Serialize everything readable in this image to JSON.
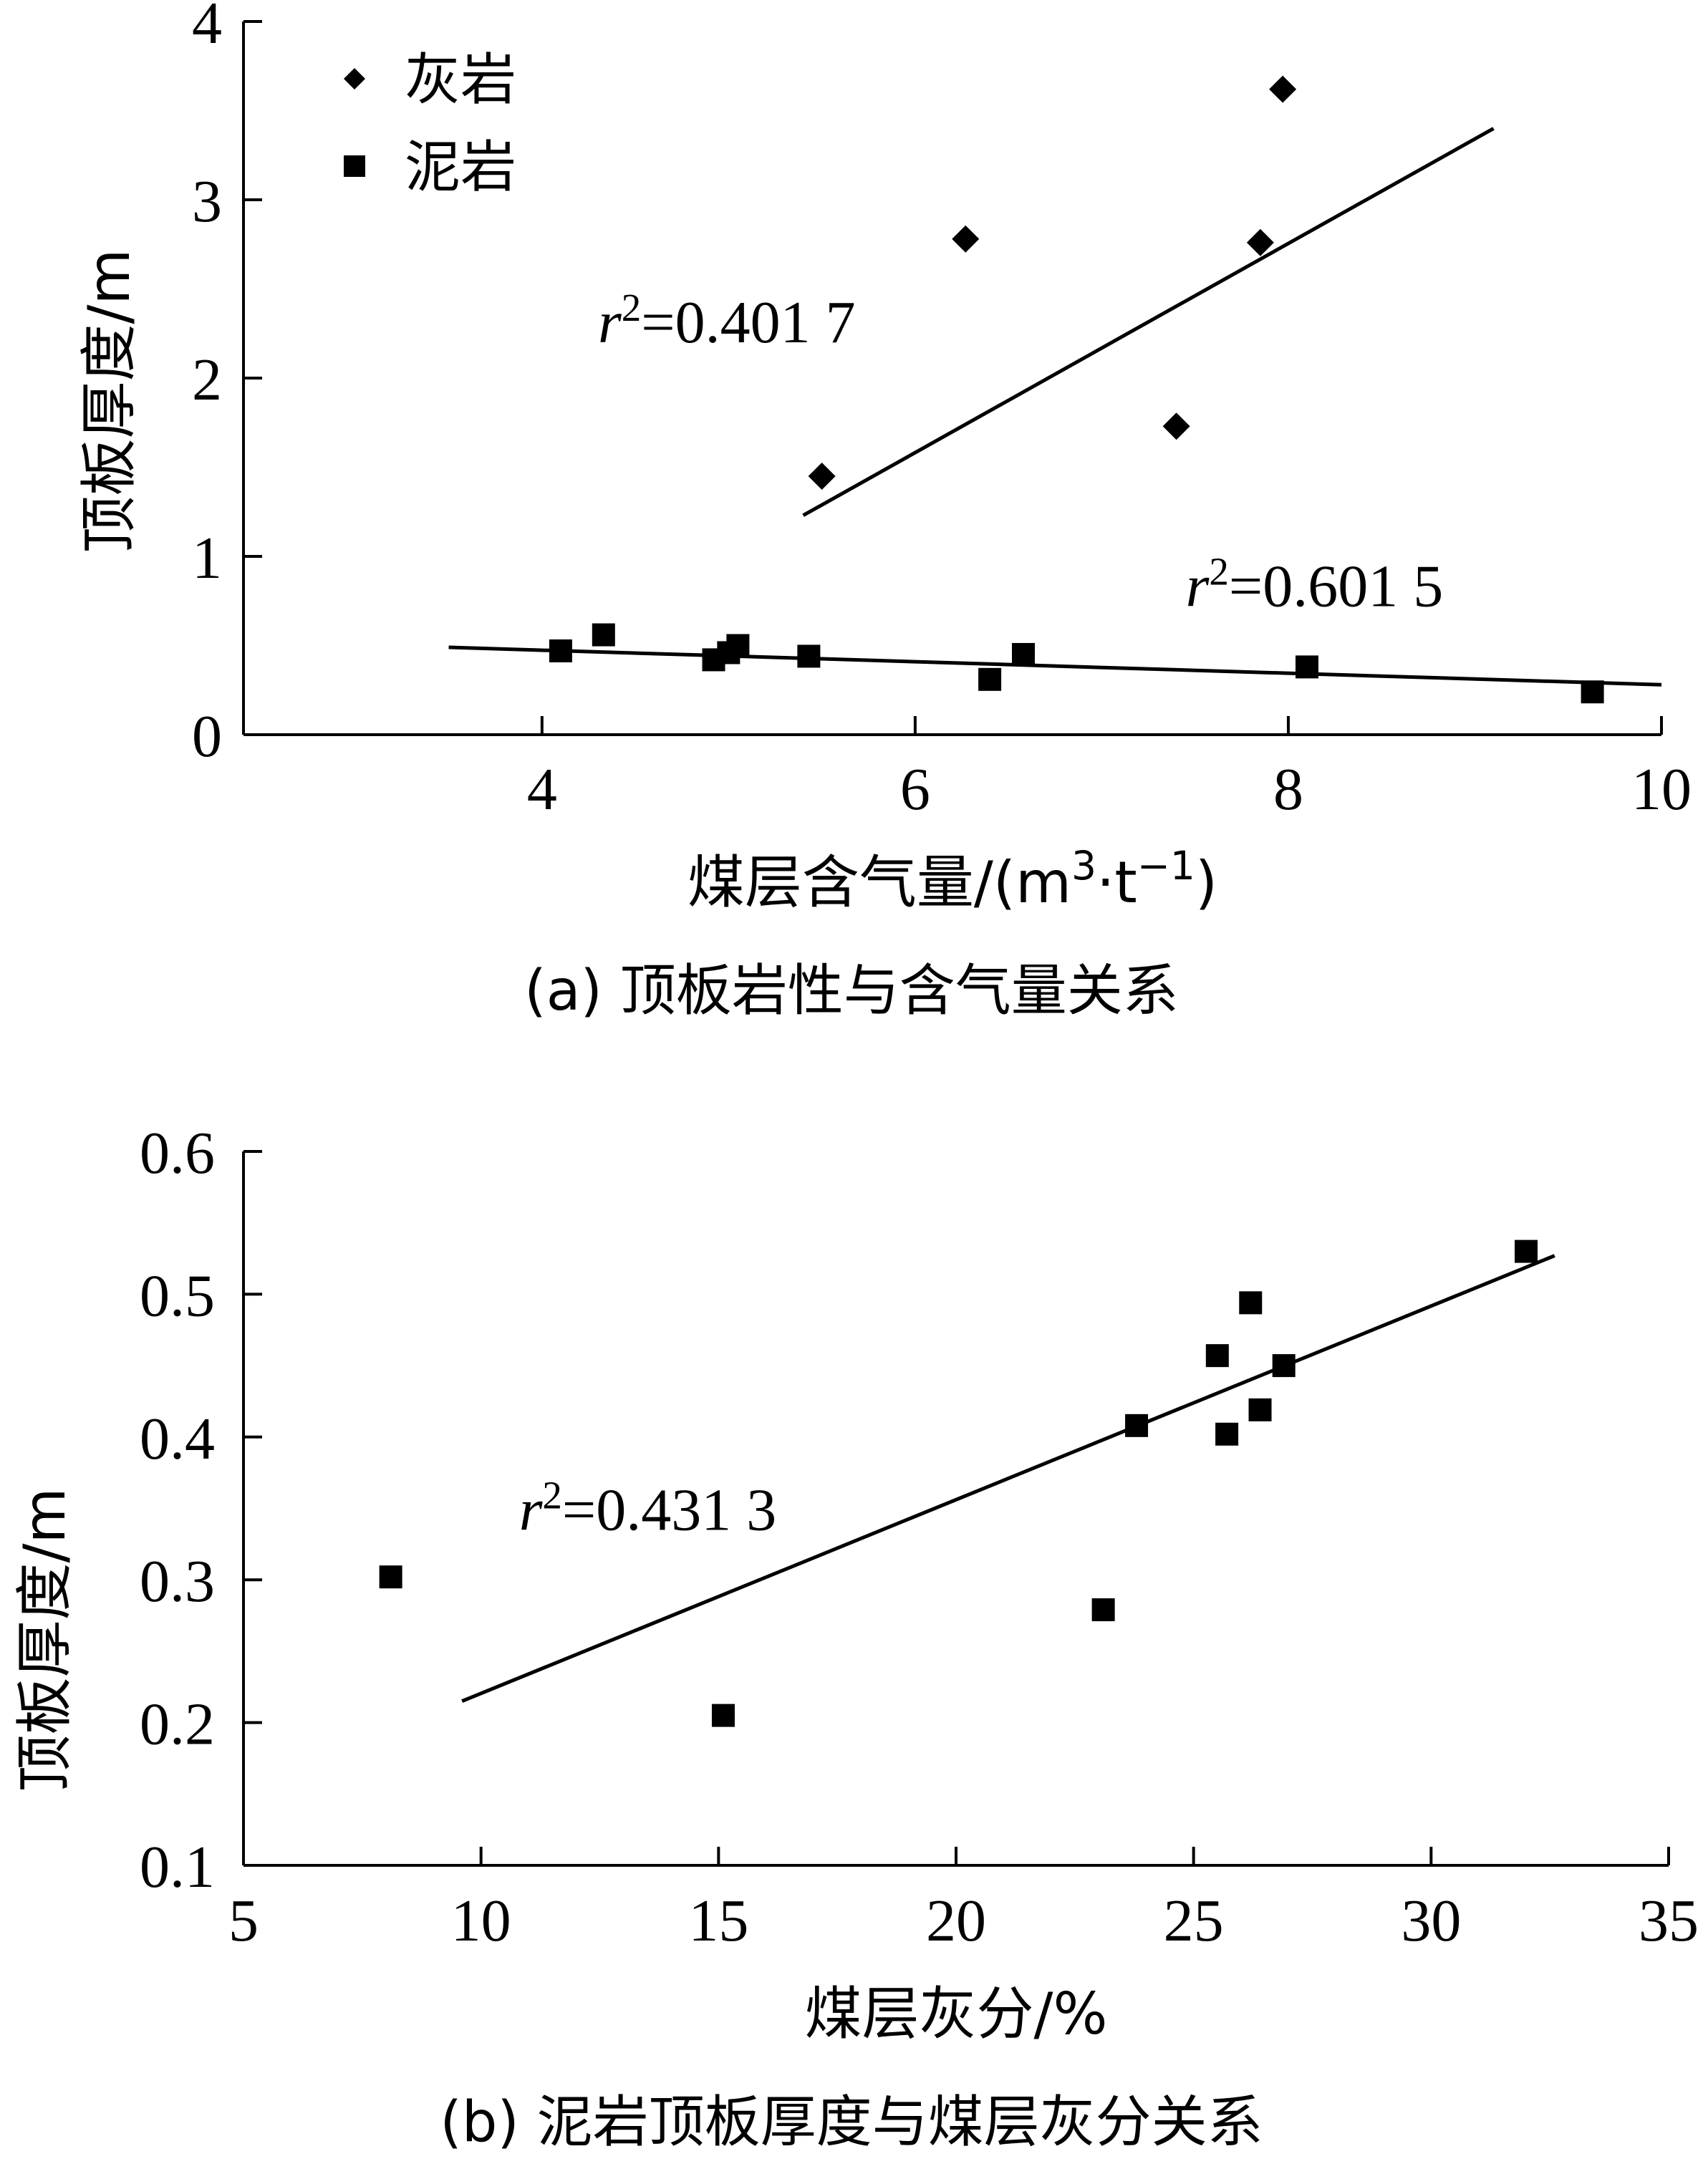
{
  "chart_data": [
    {
      "type": "scatter",
      "caption": "(a)  顶板岩性与含气量关系",
      "xlabel_html": "煤层含气量/(m<tspan baseline-shift=\"super\" font-size=\"55\">3</tspan>·t<tspan baseline-shift=\"super\" font-size=\"55\">−1</tspan>)",
      "ylabel": "顶板厚度/m",
      "xlim": [
        2.4,
        10
      ],
      "ylim": [
        0,
        4
      ],
      "xticks": [
        "4",
        "6",
        "8",
        "10"
      ],
      "xtick_values": [
        4,
        6,
        8,
        10
      ],
      "yticks": [
        "0",
        "1",
        "2",
        "3",
        "4"
      ],
      "ytick_values": [
        0,
        1,
        2,
        3,
        4
      ],
      "legend": "top-left",
      "grid": false,
      "series": [
        {
          "name": "灰岩",
          "marker": "diamond",
          "points": [
            [
              5.5,
              1.45
            ],
            [
              6.27,
              2.78
            ],
            [
              7.4,
              1.73
            ],
            [
              7.85,
              2.76
            ],
            [
              7.97,
              3.62
            ]
          ],
          "fit": {
            "from": [
              5.4,
              1.23
            ],
            "to": [
              9.1,
              3.4
            ]
          },
          "r2_html": "<tspan class=\"it\">r</tspan><tspan baseline-shift=\"super\" font-size=\"55\">2</tspan>=0.401 7",
          "r2_at": [
            4.3,
            2.2
          ]
        },
        {
          "name": "泥岩",
          "marker": "square",
          "points": [
            [
              4.1,
              0.47
            ],
            [
              4.33,
              0.56
            ],
            [
              4.92,
              0.42
            ],
            [
              5.0,
              0.46
            ],
            [
              5.05,
              0.5
            ],
            [
              5.43,
              0.44
            ],
            [
              6.4,
              0.31
            ],
            [
              6.58,
              0.45
            ],
            [
              8.1,
              0.38
            ],
            [
              9.63,
              0.24
            ]
          ],
          "fit": {
            "from": [
              3.5,
              0.49
            ],
            "to": [
              10.0,
              0.28
            ]
          },
          "r2_html": "<tspan class=\"it\">r</tspan><tspan baseline-shift=\"super\" font-size=\"55\">2</tspan>=0.601 5",
          "r2_at": [
            7.45,
            0.72
          ]
        }
      ]
    },
    {
      "type": "scatter",
      "caption": "(b)  泥岩顶板厚度与煤层灰分关系",
      "xlabel_html": "煤层灰分/%",
      "ylabel": "顶板厚度/m",
      "xlim": [
        5,
        35
      ],
      "ylim": [
        0.1,
        0.6
      ],
      "xticks": [
        "5",
        "10",
        "15",
        "20",
        "25",
        "30",
        "35"
      ],
      "xtick_values": [
        5,
        10,
        15,
        20,
        25,
        30,
        35
      ],
      "yticks": [
        "0.1",
        "0.2",
        "0.3",
        "0.4",
        "0.5",
        "0.6"
      ],
      "ytick_values": [
        0.1,
        0.2,
        0.3,
        0.4,
        0.5,
        0.6
      ],
      "grid": false,
      "series": [
        {
          "marker": "square",
          "points": [
            [
              8.1,
              0.302
            ],
            [
              15.1,
              0.205
            ],
            [
              23.1,
              0.279
            ],
            [
              23.8,
              0.408
            ],
            [
              25.5,
              0.457
            ],
            [
              25.7,
              0.402
            ],
            [
              26.2,
              0.494
            ],
            [
              26.4,
              0.419
            ],
            [
              26.9,
              0.45
            ],
            [
              32.0,
              0.53
            ]
          ],
          "fit": {
            "from": [
              9.6,
              0.215
            ],
            "to": [
              32.6,
              0.527
            ]
          },
          "r2_html": "<tspan class=\"it\">r</tspan><tspan baseline-shift=\"super\" font-size=\"55\">2</tspan>=0.431 3",
          "r2_at": [
            10.8,
            0.335
          ]
        }
      ]
    }
  ]
}
